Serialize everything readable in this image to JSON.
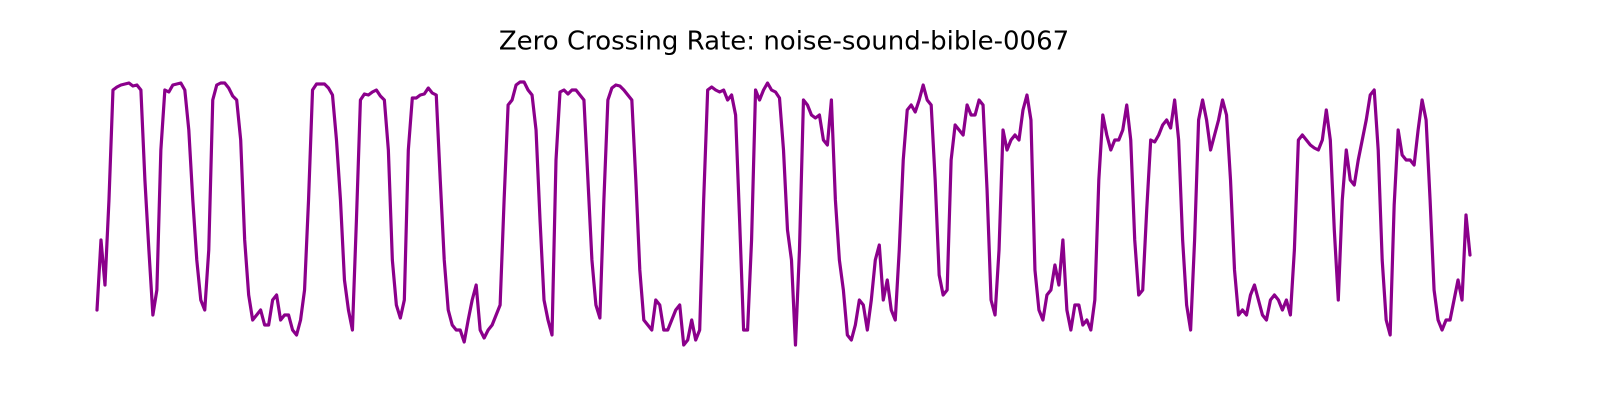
{
  "chart_data": {
    "type": "line",
    "title": "Zero Crossing Rate: noise-sound-bible-0067",
    "color": "#8b008b",
    "ylim": [
      0,
      0.31
    ],
    "values": [
      0.06,
      0.13,
      0.085,
      0.17,
      0.28,
      0.283,
      0.285,
      0.286,
      0.287,
      0.284,
      0.285,
      0.28,
      0.19,
      0.12,
      0.055,
      0.08,
      0.22,
      0.28,
      0.278,
      0.285,
      0.286,
      0.287,
      0.28,
      0.24,
      0.17,
      0.11,
      0.07,
      0.06,
      0.12,
      0.27,
      0.285,
      0.287,
      0.287,
      0.282,
      0.274,
      0.27,
      0.23,
      0.13,
      0.075,
      0.05,
      0.055,
      0.06,
      0.045,
      0.045,
      0.07,
      0.075,
      0.05,
      0.055,
      0.055,
      0.04,
      0.035,
      0.05,
      0.08,
      0.17,
      0.28,
      0.286,
      0.286,
      0.286,
      0.282,
      0.275,
      0.23,
      0.17,
      0.09,
      0.06,
      0.04,
      0.15,
      0.27,
      0.276,
      0.275,
      0.278,
      0.28,
      0.274,
      0.27,
      0.22,
      0.11,
      0.065,
      0.052,
      0.07,
      0.22,
      0.272,
      0.272,
      0.275,
      0.276,
      0.282,
      0.277,
      0.275,
      0.19,
      0.11,
      0.06,
      0.045,
      0.04,
      0.04,
      0.028,
      0.05,
      0.07,
      0.085,
      0.04,
      0.032,
      0.04,
      0.045,
      0.055,
      0.065,
      0.17,
      0.265,
      0.27,
      0.285,
      0.288,
      0.288,
      0.28,
      0.275,
      0.24,
      0.15,
      0.07,
      0.05,
      0.035,
      0.21,
      0.278,
      0.28,
      0.276,
      0.28,
      0.28,
      0.275,
      0.27,
      0.19,
      0.11,
      0.065,
      0.052,
      0.17,
      0.27,
      0.282,
      0.285,
      0.284,
      0.28,
      0.275,
      0.27,
      0.19,
      0.1,
      0.05,
      0.045,
      0.04,
      0.07,
      0.065,
      0.04,
      0.04,
      0.05,
      0.06,
      0.065,
      0.025,
      0.03,
      0.05,
      0.03,
      0.04,
      0.17,
      0.28,
      0.283,
      0.28,
      0.278,
      0.28,
      0.27,
      0.275,
      0.255,
      0.15,
      0.04,
      0.04,
      0.13,
      0.28,
      0.27,
      0.28,
      0.287,
      0.28,
      0.278,
      0.272,
      0.22,
      0.14,
      0.11,
      0.025,
      0.12,
      0.27,
      0.265,
      0.255,
      0.252,
      0.255,
      0.23,
      0.225,
      0.27,
      0.17,
      0.11,
      0.08,
      0.035,
      0.03,
      0.045,
      0.07,
      0.065,
      0.04,
      0.07,
      0.11,
      0.125,
      0.07,
      0.09,
      0.06,
      0.05,
      0.12,
      0.21,
      0.26,
      0.265,
      0.258,
      0.27,
      0.285,
      0.27,
      0.265,
      0.19,
      0.095,
      0.075,
      0.08,
      0.21,
      0.245,
      0.24,
      0.235,
      0.265,
      0.255,
      0.255,
      0.27,
      0.265,
      0.18,
      0.07,
      0.055,
      0.12,
      0.24,
      0.22,
      0.23,
      0.235,
      0.23,
      0.26,
      0.275,
      0.25,
      0.1,
      0.06,
      0.05,
      0.075,
      0.08,
      0.105,
      0.085,
      0.13,
      0.06,
      0.04,
      0.065,
      0.065,
      0.045,
      0.05,
      0.04,
      0.07,
      0.19,
      0.255,
      0.235,
      0.22,
      0.23,
      0.23,
      0.24,
      0.265,
      0.23,
      0.13,
      0.075,
      0.08,
      0.16,
      0.23,
      0.228,
      0.235,
      0.245,
      0.25,
      0.242,
      0.27,
      0.23,
      0.13,
      0.065,
      0.04,
      0.13,
      0.25,
      0.27,
      0.25,
      0.22,
      0.235,
      0.25,
      0.27,
      0.255,
      0.19,
      0.1,
      0.055,
      0.06,
      0.055,
      0.075,
      0.085,
      0.07,
      0.055,
      0.05,
      0.07,
      0.075,
      0.07,
      0.06,
      0.07,
      0.055,
      0.12,
      0.23,
      0.235,
      0.23,
      0.225,
      0.222,
      0.22,
      0.23,
      0.26,
      0.23,
      0.14,
      0.07,
      0.17,
      0.22,
      0.19,
      0.185,
      0.21,
      0.23,
      0.25,
      0.275,
      0.28,
      0.22,
      0.11,
      0.05,
      0.035,
      0.165,
      0.24,
      0.215,
      0.21,
      0.21,
      0.205,
      0.24,
      0.27,
      0.25,
      0.17,
      0.08,
      0.05,
      0.04,
      0.05,
      0.05,
      0.07,
      0.09,
      0.07,
      0.155,
      0.115
    ]
  }
}
